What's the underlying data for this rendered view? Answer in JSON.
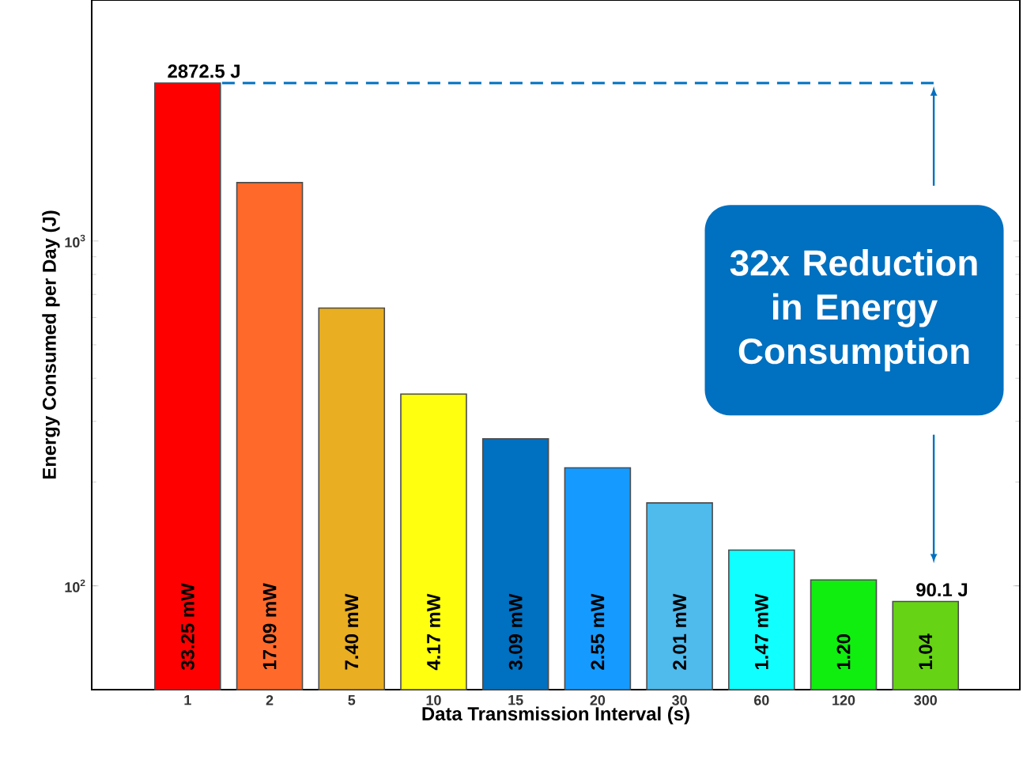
{
  "chart_data": {
    "type": "bar",
    "xlabel": "Data Transmission Interval (s)",
    "ylabel": "Energy Consumed per Day (J)",
    "categories": [
      "1",
      "2",
      "5",
      "10",
      "15",
      "20",
      "30",
      "60",
      "120",
      "300"
    ],
    "values": [
      2872.5,
      1477,
      639,
      360,
      267,
      220,
      174,
      127,
      104,
      90.1
    ],
    "colors": [
      "#ff0000",
      "#ff6a2a",
      "#e9ae21",
      "#ffff10",
      "#0070c0",
      "#159bff",
      "#4fbaec",
      "#10ffff",
      "#10ee10",
      "#66d315"
    ],
    "log": "y",
    "ylim": [
      50,
      5000
    ],
    "yticks": [
      {
        "value": 100,
        "label": "10$^{2}$"
      },
      {
        "value": 1000,
        "label": "10$^{3}$"
      }
    ],
    "ref_lines": [
      {
        "axis": "y",
        "value": 2872.5,
        "color": "#0070c0",
        "line_style": "dashed"
      }
    ],
    "annotations": [
      {
        "text": "2872.5 J",
        "x": "1",
        "y": 2872.5
      },
      {
        "text": "90.1 J",
        "x": "300",
        "y": 90.1
      },
      "32x Reduction in Energy Consumption",
      "33.25 mW",
      "17.09 mW",
      "7.40 mW",
      "4.17 mW",
      "3.09 mW",
      "2.55 mW",
      "2.01 mW",
      "1.47 mW",
      "1.20",
      "1.04"
    ]
  }
}
